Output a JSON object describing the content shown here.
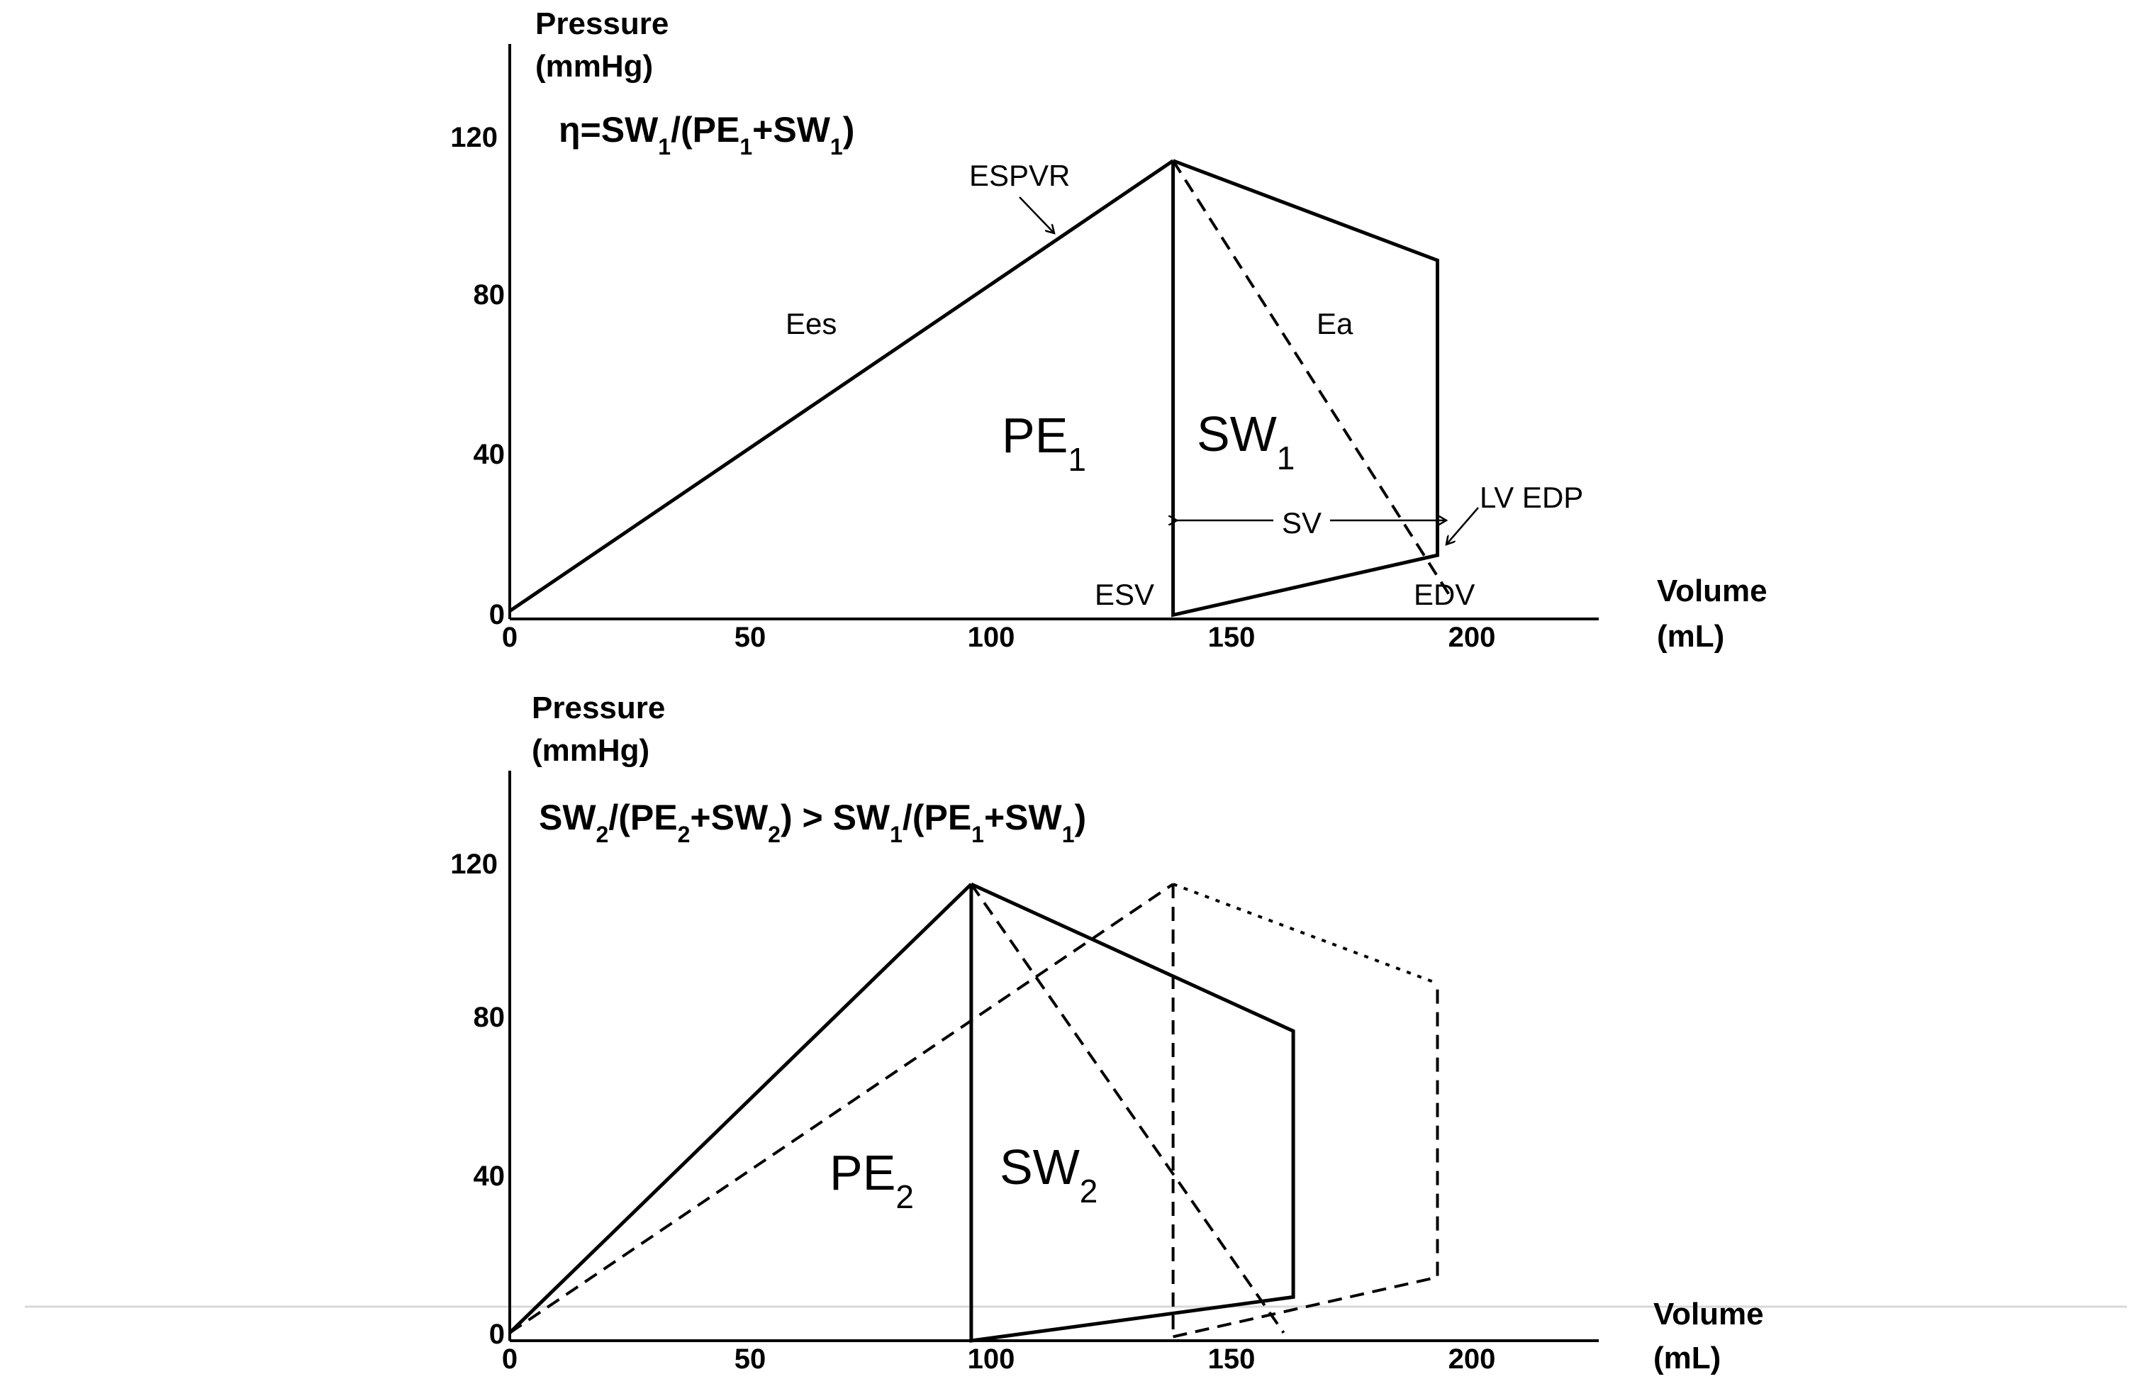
{
  "chart_data": [
    {
      "type": "line",
      "panel": "top",
      "ylabel_line1": "Pressure",
      "ylabel_line2": "(mmHg)",
      "xlabel_line1": "Volume",
      "xlabel_line2": "(mL)",
      "xlim": [
        0,
        228
      ],
      "ylim": [
        0,
        140
      ],
      "x_ticks": [
        "0",
        "50",
        "100",
        "150",
        "200"
      ],
      "y_ticks": [
        "0",
        "40",
        "80",
        "120"
      ],
      "formula": {
        "lead": "η=SW",
        "s1": "1",
        "mid1": "/(PE",
        "s2": "1",
        "mid2": "+SW",
        "s3": "1",
        "tail": ")"
      },
      "series": [
        {
          "style": "solid",
          "label": "ESPVR",
          "points": [
            [
              0,
              2
            ],
            [
              138,
              115
            ]
          ]
        },
        {
          "style": "solid",
          "label": "PV loop",
          "points": [
            [
              138,
              115
            ],
            [
              138,
              1
            ],
            [
              193,
              16
            ],
            [
              193,
              90
            ],
            [
              138,
              115
            ]
          ]
        },
        {
          "style": "dashed",
          "label": "Ea",
          "points": [
            [
              138,
              115
            ],
            [
              196,
              5
            ]
          ]
        }
      ],
      "annotations": {
        "espvr": "ESPVR",
        "ees": "Ees",
        "ea": "Ea",
        "pe_main": "PE",
        "pe_sub": "1",
        "sw_main": "SW",
        "sw_sub": "1",
        "sv": "SV",
        "lvedp": "LV EDP",
        "esv": "ESV",
        "edv": "EDV"
      }
    },
    {
      "type": "line",
      "panel": "bottom",
      "ylabel_line1": "Pressure",
      "ylabel_line2": "(mmHg)",
      "xlabel_line1": "Volume",
      "xlabel_line2": "(mL)",
      "xlim": [
        0,
        228
      ],
      "ylim": [
        0,
        140
      ],
      "x_ticks": [
        "0",
        "50",
        "100",
        "150",
        "200"
      ],
      "y_ticks": [
        "0",
        "40",
        "80",
        "120"
      ],
      "formula": {
        "a": "SW",
        "sa": "2",
        "b": "/(PE",
        "sb": "2",
        "c": "+SW",
        "sc": "2",
        "d": ") > SW",
        "sd": "1",
        "e": "/(PE",
        "se": "1",
        "f": "+SW",
        "sf": "1",
        "g": ")"
      },
      "series": [
        {
          "style": "solid",
          "label": "ESPVR 2",
          "points": [
            [
              0,
              2
            ],
            [
              96,
              115
            ]
          ]
        },
        {
          "style": "solid",
          "label": "PV loop 2",
          "points": [
            [
              96,
              115
            ],
            [
              96,
              0
            ],
            [
              163,
              11
            ],
            [
              163,
              78
            ],
            [
              96,
              115
            ]
          ]
        },
        {
          "style": "dashed",
          "label": "Ea 2",
          "points": [
            [
              96,
              115
            ],
            [
              161,
              2
            ]
          ]
        },
        {
          "style": "dashed",
          "label": "ESPVR 1",
          "points": [
            [
              0,
              2
            ],
            [
              138,
              115
            ]
          ]
        },
        {
          "style": "dashed",
          "label": "Loop 1 ESV",
          "points": [
            [
              138,
              115
            ],
            [
              138,
              1
            ]
          ]
        },
        {
          "style": "dashed",
          "label": "Loop 1 filling",
          "points": [
            [
              138,
              1
            ],
            [
              193,
              16
            ],
            [
              193,
              90
            ]
          ]
        },
        {
          "style": "dotted",
          "label": "Loop 1 ejection",
          "points": [
            [
              138,
              115
            ],
            [
              193,
              90
            ]
          ]
        }
      ],
      "annotations": {
        "pe_main": "PE",
        "pe_sub": "2",
        "sw_main": "SW",
        "sw_sub": "2"
      }
    }
  ]
}
